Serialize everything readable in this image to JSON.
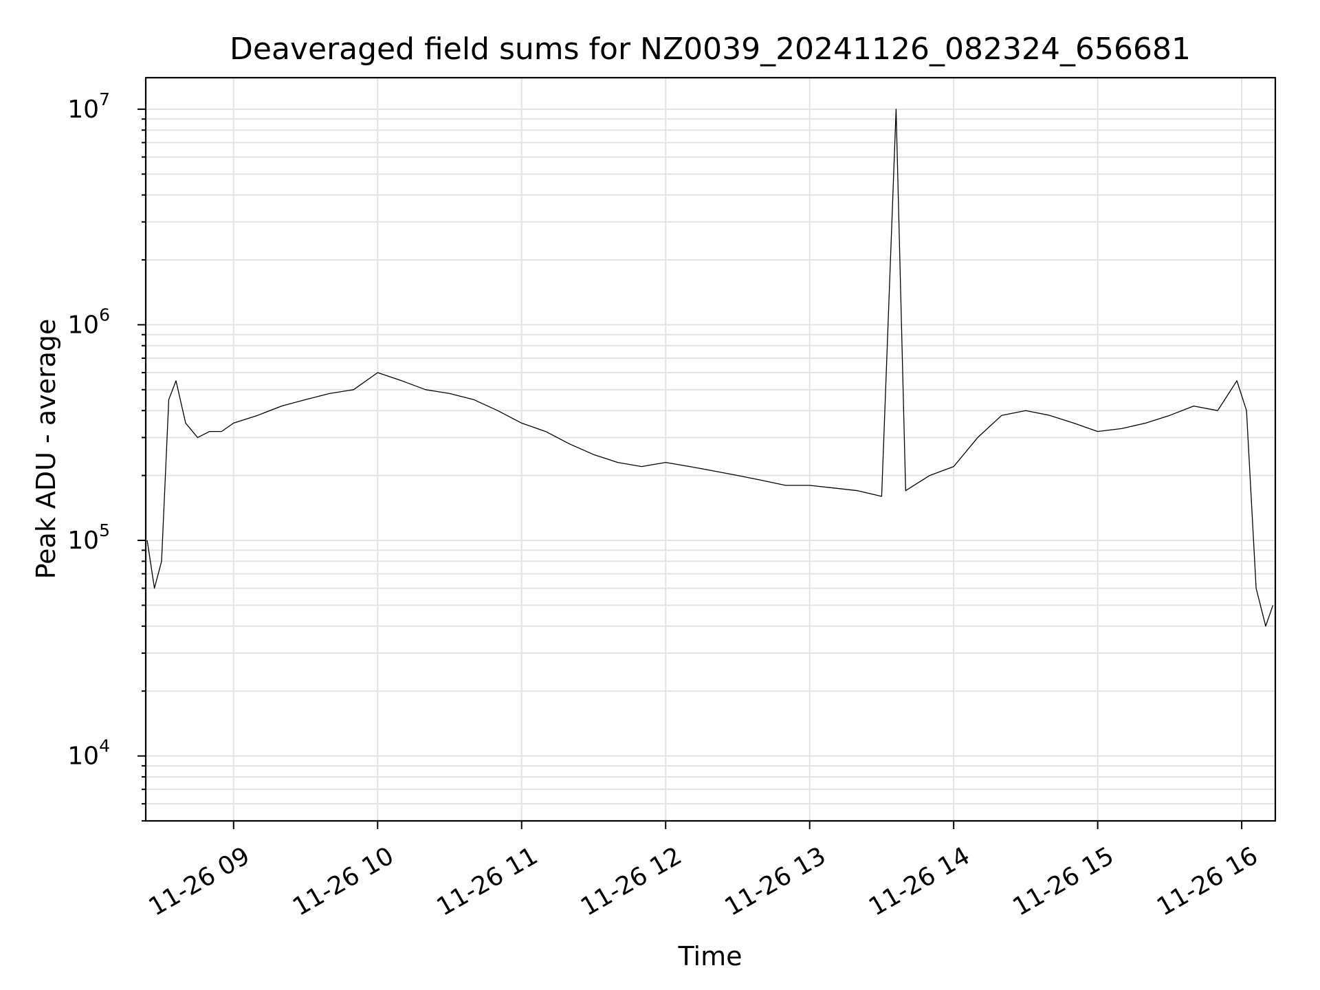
{
  "chart_data": {
    "type": "line",
    "title": "Deaveraged field sums for NZ0039_20241126_082324_656681",
    "xlabel": "Time",
    "ylabel": "Peak ADU - average",
    "yscale": "log",
    "xlim": [
      "2024-11-26 08:23:24",
      "2024-11-26 16:14:00"
    ],
    "ylim": [
      5000,
      14000000
    ],
    "xticks": [
      "11-26 09",
      "11-26 10",
      "11-26 11",
      "11-26 12",
      "11-26 13",
      "11-26 14",
      "11-26 15",
      "11-26 16"
    ],
    "yticks": [
      {
        "base": "10",
        "exp": "4"
      },
      {
        "base": "10",
        "exp": "5"
      },
      {
        "base": "10",
        "exp": "6"
      },
      {
        "base": "10",
        "exp": "7"
      }
    ],
    "grid": true,
    "legend": "none",
    "line_color": "#000000",
    "series": [
      {
        "x": [
          "2024-11-26 08:24",
          "2024-11-26 08:27",
          "2024-11-26 08:30",
          "2024-11-26 08:33",
          "2024-11-26 08:36",
          "2024-11-26 08:40",
          "2024-11-26 08:45",
          "2024-11-26 08:50",
          "2024-11-26 08:55",
          "2024-11-26 09:00",
          "2024-11-26 09:10",
          "2024-11-26 09:20",
          "2024-11-26 09:30",
          "2024-11-26 09:40",
          "2024-11-26 09:50",
          "2024-11-26 10:00",
          "2024-11-26 10:10",
          "2024-11-26 10:20",
          "2024-11-26 10:30",
          "2024-11-26 10:40",
          "2024-11-26 10:50",
          "2024-11-26 11:00",
          "2024-11-26 11:10",
          "2024-11-26 11:20",
          "2024-11-26 11:30",
          "2024-11-26 11:40",
          "2024-11-26 11:50",
          "2024-11-26 12:00",
          "2024-11-26 12:10",
          "2024-11-26 12:20",
          "2024-11-26 12:30",
          "2024-11-26 12:40",
          "2024-11-26 12:50",
          "2024-11-26 13:00",
          "2024-11-26 13:10",
          "2024-11-26 13:20",
          "2024-11-26 13:30",
          "2024-11-26 13:36",
          "2024-11-26 13:40",
          "2024-11-26 13:50",
          "2024-11-26 14:00",
          "2024-11-26 14:10",
          "2024-11-26 14:20",
          "2024-11-26 14:30",
          "2024-11-26 14:40",
          "2024-11-26 14:50",
          "2024-11-26 15:00",
          "2024-11-26 15:10",
          "2024-11-26 15:20",
          "2024-11-26 15:30",
          "2024-11-26 15:40",
          "2024-11-26 15:50",
          "2024-11-26 15:58",
          "2024-11-26 16:02",
          "2024-11-26 16:06",
          "2024-11-26 16:10",
          "2024-11-26 16:13"
        ],
        "y": [
          100000,
          60000,
          80000,
          450000,
          550000,
          350000,
          300000,
          320000,
          320000,
          350000,
          380000,
          420000,
          450000,
          480000,
          500000,
          600000,
          550000,
          500000,
          480000,
          450000,
          400000,
          350000,
          320000,
          280000,
          250000,
          230000,
          220000,
          230000,
          220000,
          210000,
          200000,
          190000,
          180000,
          180000,
          175000,
          170000,
          160000,
          10000000,
          170000,
          200000,
          220000,
          300000,
          380000,
          400000,
          380000,
          350000,
          320000,
          330000,
          350000,
          380000,
          420000,
          400000,
          550000,
          400000,
          60000,
          40000,
          50000
        ]
      }
    ]
  }
}
